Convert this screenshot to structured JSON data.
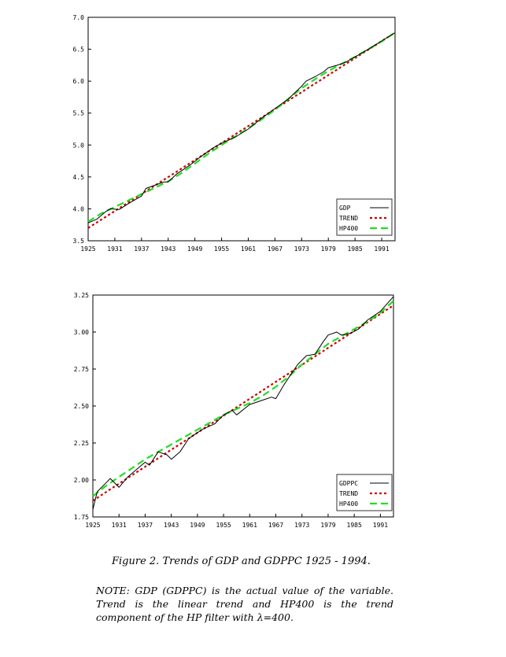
{
  "chart_data": [
    {
      "type": "line",
      "title": "",
      "xlabel": "",
      "ylabel": "",
      "xlim": [
        1925,
        1994
      ],
      "ylim": [
        3.5,
        7.0
      ],
      "x_ticks": [
        1925,
        1931,
        1937,
        1943,
        1949,
        1955,
        1961,
        1967,
        1973,
        1979,
        1985,
        1991
      ],
      "y_ticks": [
        3.5,
        4.0,
        4.5,
        5.0,
        5.5,
        6.0,
        6.5,
        7.0
      ],
      "y_tick_labels": [
        "3.5",
        "4.0",
        "4.5",
        "5.0",
        "5.5",
        "6.0",
        "6.5",
        "7.0"
      ],
      "grid": false,
      "legend_position": "bottom-right",
      "series": [
        {
          "name": "GDP",
          "color": "#000000",
          "style": "solid",
          "x": [
            1925,
            1927,
            1929,
            1930,
            1932,
            1934,
            1937,
            1938,
            1940,
            1942,
            1943,
            1945,
            1948,
            1950,
            1953,
            1955,
            1958,
            1961,
            1964,
            1967,
            1970,
            1973,
            1974,
            1976,
            1978,
            1979,
            1981,
            1983,
            1985,
            1988,
            1991,
            1994
          ],
          "y": [
            3.78,
            3.84,
            3.96,
            4.0,
            3.99,
            4.08,
            4.2,
            4.32,
            4.37,
            4.42,
            4.42,
            4.55,
            4.69,
            4.8,
            4.95,
            5.03,
            5.12,
            5.25,
            5.42,
            5.57,
            5.72,
            5.92,
            6.0,
            6.07,
            6.15,
            6.21,
            6.25,
            6.3,
            6.38,
            6.5,
            6.63,
            6.76
          ]
        },
        {
          "name": "TREND",
          "color": "#cc0000",
          "style": "dotted",
          "x": [
            1925,
            1994
          ],
          "y": [
            3.7,
            6.76
          ]
        },
        {
          "name": "HP400",
          "color": "#22dd22",
          "style": "dashed",
          "x": [
            1925,
            1928,
            1931,
            1934,
            1937,
            1940,
            1943,
            1946,
            1949,
            1952,
            1955,
            1958,
            1961,
            1964,
            1967,
            1970,
            1973,
            1976,
            1979,
            1982,
            1985,
            1988,
            1991,
            1994
          ],
          "y": [
            3.8,
            3.93,
            4.03,
            4.13,
            4.23,
            4.33,
            4.43,
            4.56,
            4.71,
            4.86,
            5.0,
            5.13,
            5.26,
            5.4,
            5.55,
            5.72,
            5.89,
            6.03,
            6.16,
            6.27,
            6.38,
            6.5,
            6.62,
            6.76
          ]
        }
      ]
    },
    {
      "type": "line",
      "title": "",
      "xlabel": "",
      "ylabel": "",
      "xlim": [
        1925,
        1994
      ],
      "ylim": [
        1.75,
        3.25
      ],
      "x_ticks": [
        1925,
        1931,
        1937,
        1943,
        1949,
        1955,
        1961,
        1967,
        1973,
        1979,
        1985,
        1991
      ],
      "y_ticks": [
        1.75,
        2.0,
        2.25,
        2.5,
        2.75,
        3.0,
        3.25
      ],
      "y_tick_labels": [
        "1.75",
        "2.00",
        "2.25",
        "2.50",
        "2.75",
        "3.00",
        "3.25"
      ],
      "grid": false,
      "legend_position": "bottom-right",
      "series": [
        {
          "name": "GDPPC",
          "color": "#000000",
          "style": "solid",
          "x": [
            1925,
            1926,
            1928,
            1929,
            1931,
            1933,
            1935,
            1937,
            1938,
            1940,
            1942,
            1943,
            1945,
            1947,
            1950,
            1953,
            1955,
            1957,
            1958,
            1961,
            1964,
            1966,
            1967,
            1969,
            1972,
            1974,
            1976,
            1978,
            1979,
            1981,
            1982,
            1984,
            1986,
            1988,
            1991,
            1994
          ],
          "y": [
            1.8,
            1.92,
            1.98,
            2.01,
            1.95,
            2.02,
            2.07,
            2.12,
            2.1,
            2.19,
            2.17,
            2.14,
            2.19,
            2.28,
            2.34,
            2.38,
            2.44,
            2.47,
            2.44,
            2.51,
            2.54,
            2.56,
            2.55,
            2.65,
            2.78,
            2.84,
            2.85,
            2.94,
            2.98,
            3.0,
            2.98,
            2.99,
            3.02,
            3.08,
            3.14,
            3.24
          ]
        },
        {
          "name": "TREND",
          "color": "#cc0000",
          "style": "dotted",
          "x": [
            1925,
            1994
          ],
          "y": [
            1.86,
            3.18
          ]
        },
        {
          "name": "HP400",
          "color": "#22dd22",
          "style": "dashed",
          "x": [
            1925,
            1928,
            1931,
            1934,
            1937,
            1940,
            1943,
            1946,
            1949,
            1952,
            1955,
            1958,
            1961,
            1964,
            1967,
            1970,
            1973,
            1976,
            1979,
            1982,
            1985,
            1988,
            1991,
            1994
          ],
          "y": [
            1.89,
            1.96,
            2.02,
            2.08,
            2.14,
            2.19,
            2.24,
            2.29,
            2.34,
            2.39,
            2.44,
            2.48,
            2.52,
            2.57,
            2.63,
            2.7,
            2.78,
            2.85,
            2.92,
            2.97,
            3.02,
            3.07,
            3.13,
            3.21
          ]
        }
      ]
    }
  ],
  "caption": "Figure 2.  Trends of GDP and GDPPC 1925 - 1994.",
  "note": "NOTE: GDP (GDPPC) is the actual value of the variable. Trend is the linear trend and HP400 is the trend component of the HP filter with λ=400."
}
